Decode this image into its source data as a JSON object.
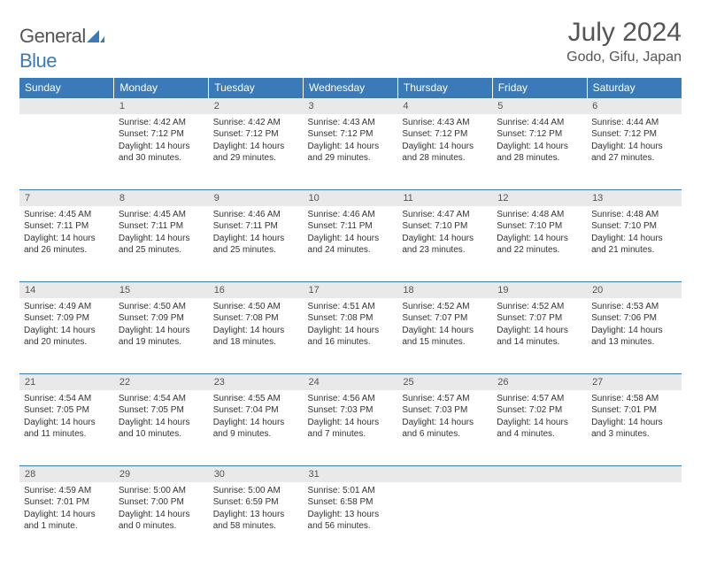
{
  "brand": {
    "part1": "General",
    "part2": "Blue"
  },
  "title": "July 2024",
  "location": "Godo, Gifu, Japan",
  "colors": {
    "header_bg": "#3a7ab8",
    "daynum_bg": "#e9e9e9",
    "text": "#555555",
    "body_text": "#333333"
  },
  "day_headers": [
    "Sunday",
    "Monday",
    "Tuesday",
    "Wednesday",
    "Thursday",
    "Friday",
    "Saturday"
  ],
  "weeks": [
    [
      null,
      {
        "n": "1",
        "sr": "Sunrise: 4:42 AM",
        "ss": "Sunset: 7:12 PM",
        "dl": "Daylight: 14 hours and 30 minutes."
      },
      {
        "n": "2",
        "sr": "Sunrise: 4:42 AM",
        "ss": "Sunset: 7:12 PM",
        "dl": "Daylight: 14 hours and 29 minutes."
      },
      {
        "n": "3",
        "sr": "Sunrise: 4:43 AM",
        "ss": "Sunset: 7:12 PM",
        "dl": "Daylight: 14 hours and 29 minutes."
      },
      {
        "n": "4",
        "sr": "Sunrise: 4:43 AM",
        "ss": "Sunset: 7:12 PM",
        "dl": "Daylight: 14 hours and 28 minutes."
      },
      {
        "n": "5",
        "sr": "Sunrise: 4:44 AM",
        "ss": "Sunset: 7:12 PM",
        "dl": "Daylight: 14 hours and 28 minutes."
      },
      {
        "n": "6",
        "sr": "Sunrise: 4:44 AM",
        "ss": "Sunset: 7:12 PM",
        "dl": "Daylight: 14 hours and 27 minutes."
      }
    ],
    [
      {
        "n": "7",
        "sr": "Sunrise: 4:45 AM",
        "ss": "Sunset: 7:11 PM",
        "dl": "Daylight: 14 hours and 26 minutes."
      },
      {
        "n": "8",
        "sr": "Sunrise: 4:45 AM",
        "ss": "Sunset: 7:11 PM",
        "dl": "Daylight: 14 hours and 25 minutes."
      },
      {
        "n": "9",
        "sr": "Sunrise: 4:46 AM",
        "ss": "Sunset: 7:11 PM",
        "dl": "Daylight: 14 hours and 25 minutes."
      },
      {
        "n": "10",
        "sr": "Sunrise: 4:46 AM",
        "ss": "Sunset: 7:11 PM",
        "dl": "Daylight: 14 hours and 24 minutes."
      },
      {
        "n": "11",
        "sr": "Sunrise: 4:47 AM",
        "ss": "Sunset: 7:10 PM",
        "dl": "Daylight: 14 hours and 23 minutes."
      },
      {
        "n": "12",
        "sr": "Sunrise: 4:48 AM",
        "ss": "Sunset: 7:10 PM",
        "dl": "Daylight: 14 hours and 22 minutes."
      },
      {
        "n": "13",
        "sr": "Sunrise: 4:48 AM",
        "ss": "Sunset: 7:10 PM",
        "dl": "Daylight: 14 hours and 21 minutes."
      }
    ],
    [
      {
        "n": "14",
        "sr": "Sunrise: 4:49 AM",
        "ss": "Sunset: 7:09 PM",
        "dl": "Daylight: 14 hours and 20 minutes."
      },
      {
        "n": "15",
        "sr": "Sunrise: 4:50 AM",
        "ss": "Sunset: 7:09 PM",
        "dl": "Daylight: 14 hours and 19 minutes."
      },
      {
        "n": "16",
        "sr": "Sunrise: 4:50 AM",
        "ss": "Sunset: 7:08 PM",
        "dl": "Daylight: 14 hours and 18 minutes."
      },
      {
        "n": "17",
        "sr": "Sunrise: 4:51 AM",
        "ss": "Sunset: 7:08 PM",
        "dl": "Daylight: 14 hours and 16 minutes."
      },
      {
        "n": "18",
        "sr": "Sunrise: 4:52 AM",
        "ss": "Sunset: 7:07 PM",
        "dl": "Daylight: 14 hours and 15 minutes."
      },
      {
        "n": "19",
        "sr": "Sunrise: 4:52 AM",
        "ss": "Sunset: 7:07 PM",
        "dl": "Daylight: 14 hours and 14 minutes."
      },
      {
        "n": "20",
        "sr": "Sunrise: 4:53 AM",
        "ss": "Sunset: 7:06 PM",
        "dl": "Daylight: 14 hours and 13 minutes."
      }
    ],
    [
      {
        "n": "21",
        "sr": "Sunrise: 4:54 AM",
        "ss": "Sunset: 7:05 PM",
        "dl": "Daylight: 14 hours and 11 minutes."
      },
      {
        "n": "22",
        "sr": "Sunrise: 4:54 AM",
        "ss": "Sunset: 7:05 PM",
        "dl": "Daylight: 14 hours and 10 minutes."
      },
      {
        "n": "23",
        "sr": "Sunrise: 4:55 AM",
        "ss": "Sunset: 7:04 PM",
        "dl": "Daylight: 14 hours and 9 minutes."
      },
      {
        "n": "24",
        "sr": "Sunrise: 4:56 AM",
        "ss": "Sunset: 7:03 PM",
        "dl": "Daylight: 14 hours and 7 minutes."
      },
      {
        "n": "25",
        "sr": "Sunrise: 4:57 AM",
        "ss": "Sunset: 7:03 PM",
        "dl": "Daylight: 14 hours and 6 minutes."
      },
      {
        "n": "26",
        "sr": "Sunrise: 4:57 AM",
        "ss": "Sunset: 7:02 PM",
        "dl": "Daylight: 14 hours and 4 minutes."
      },
      {
        "n": "27",
        "sr": "Sunrise: 4:58 AM",
        "ss": "Sunset: 7:01 PM",
        "dl": "Daylight: 14 hours and 3 minutes."
      }
    ],
    [
      {
        "n": "28",
        "sr": "Sunrise: 4:59 AM",
        "ss": "Sunset: 7:01 PM",
        "dl": "Daylight: 14 hours and 1 minute."
      },
      {
        "n": "29",
        "sr": "Sunrise: 5:00 AM",
        "ss": "Sunset: 7:00 PM",
        "dl": "Daylight: 14 hours and 0 minutes."
      },
      {
        "n": "30",
        "sr": "Sunrise: 5:00 AM",
        "ss": "Sunset: 6:59 PM",
        "dl": "Daylight: 13 hours and 58 minutes."
      },
      {
        "n": "31",
        "sr": "Sunrise: 5:01 AM",
        "ss": "Sunset: 6:58 PM",
        "dl": "Daylight: 13 hours and 56 minutes."
      },
      null,
      null,
      null
    ]
  ]
}
